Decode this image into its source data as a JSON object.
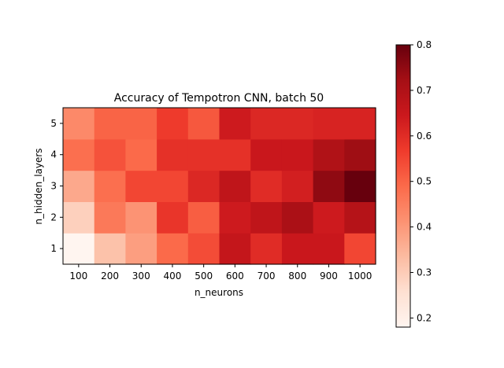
{
  "chart_data": {
    "type": "heatmap",
    "title": "Accuracy of Tempotron CNN, batch 50",
    "xlabel": "n_neurons",
    "ylabel": "n_hidden_layers",
    "x": [
      "100",
      "200",
      "300",
      "400",
      "500",
      "600",
      "700",
      "800",
      "900",
      "1000"
    ],
    "y": [
      "1",
      "2",
      "3",
      "4",
      "5"
    ],
    "values": [
      [
        0.18,
        0.32,
        0.39,
        0.49,
        0.54,
        0.66,
        0.6,
        0.65,
        0.65,
        0.55
      ],
      [
        0.29,
        0.46,
        0.41,
        0.58,
        0.51,
        0.64,
        0.67,
        0.71,
        0.64,
        0.69
      ],
      [
        0.37,
        0.48,
        0.55,
        0.55,
        0.61,
        0.67,
        0.6,
        0.63,
        0.75,
        0.8
      ],
      [
        0.48,
        0.53,
        0.49,
        0.59,
        0.59,
        0.59,
        0.65,
        0.65,
        0.7,
        0.73
      ],
      [
        0.43,
        0.5,
        0.5,
        0.57,
        0.52,
        0.64,
        0.61,
        0.61,
        0.62,
        0.62
      ]
    ],
    "colormap": "Reds",
    "colorbar": {
      "range": [
        0.18,
        0.8
      ],
      "ticks": [
        "0.2",
        "0.3",
        "0.4",
        "0.5",
        "0.6",
        "0.7",
        "0.8"
      ]
    },
    "grid": false,
    "legend": "colorbar-right"
  }
}
